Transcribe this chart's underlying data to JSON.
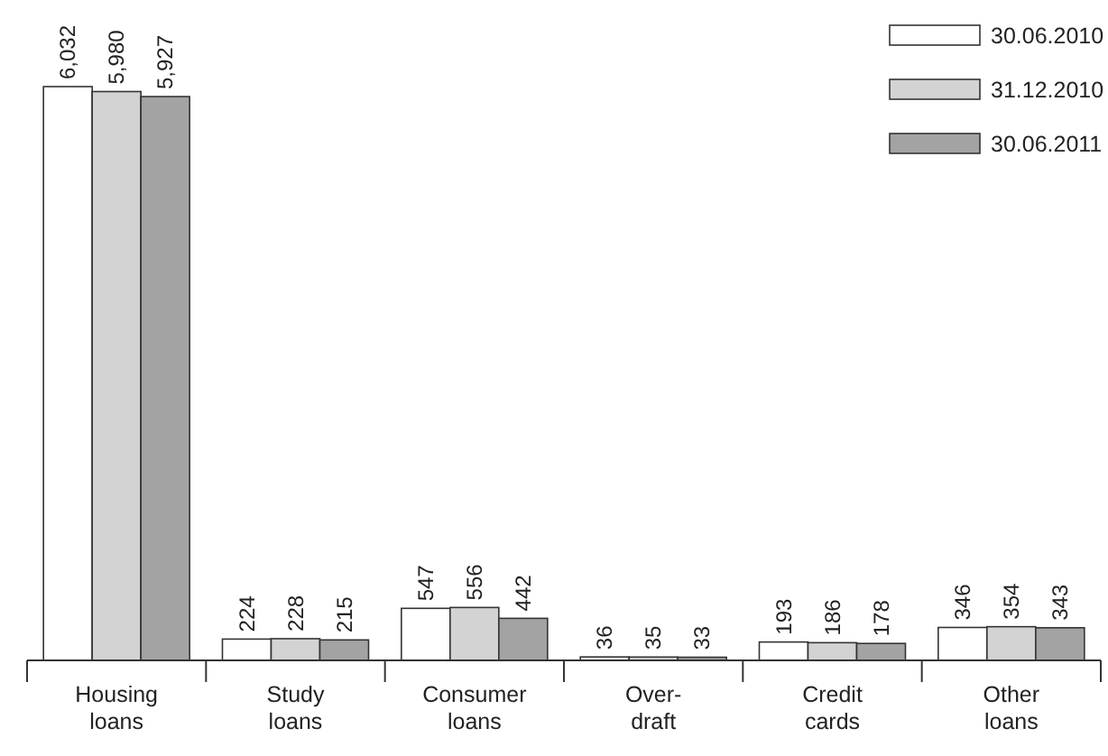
{
  "chart_data": {
    "type": "bar",
    "categories": [
      "Housing\nloans",
      "Study\nloans",
      "Consumer\nloans",
      "Over-\ndraft",
      "Credit\ncards",
      "Other\nloans"
    ],
    "series": [
      {
        "name": "30.06.2010",
        "color": "#ffffff",
        "values": [
          6032,
          224,
          547,
          36,
          193,
          346
        ],
        "value_labels": [
          "6,032",
          "224",
          "547",
          "36",
          "193",
          "346"
        ]
      },
      {
        "name": "31.12.2010",
        "color": "#d3d3d3",
        "values": [
          5980,
          228,
          556,
          35,
          186,
          354
        ],
        "value_labels": [
          "5,980",
          "228",
          "556",
          "35",
          "186",
          "354"
        ]
      },
      {
        "name": "30.06.2011",
        "color": "#a3a3a3",
        "values": [
          5927,
          215,
          442,
          33,
          178,
          343
        ],
        "value_labels": [
          "5,927",
          "215",
          "442",
          "33",
          "178",
          "343"
        ]
      }
    ],
    "legend": "top right"
  }
}
